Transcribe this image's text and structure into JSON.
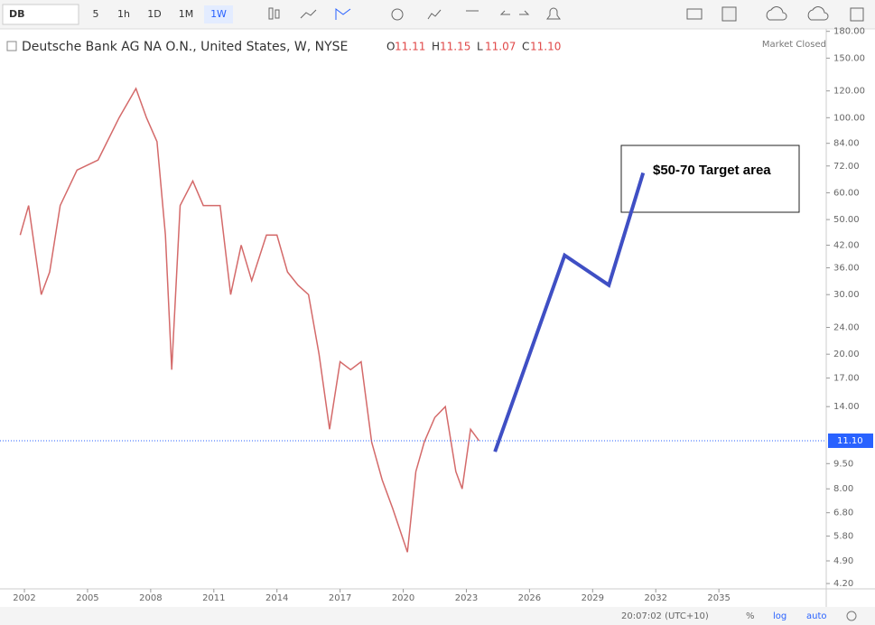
{
  "toolbar": {
    "symbol": "DB",
    "intervals": [
      "5",
      "1h",
      "1D",
      "1M",
      "1W"
    ]
  },
  "header": {
    "title": "Deutsche Bank AG NA O.N., United States, W, NYSE",
    "status": "Market Closed",
    "ohlc": [
      {
        "key": "O",
        "value": "11.11"
      },
      {
        "key": "H",
        "value": "11.15"
      },
      {
        "key": "L",
        "value": "11.07"
      },
      {
        "key": "C",
        "value": "11.10"
      }
    ]
  },
  "chart_data": {
    "type": "line",
    "log_scale": true,
    "annotation": "$50-70 Target area",
    "xlim": [
      2000.84,
      2040.1
    ],
    "xticks": [
      2002,
      2005,
      2008,
      2011,
      2014,
      2017,
      2020,
      2023,
      2026,
      2029,
      2032,
      2035
    ],
    "ylim": [
      4.05,
      183
    ],
    "yticks": [
      {
        "value": 4.2,
        "label": "4.20"
      },
      {
        "value": 4.9,
        "label": "4.90"
      },
      {
        "value": 5.8,
        "label": "5.80"
      },
      {
        "value": 6.8,
        "label": "6.80"
      },
      {
        "value": 8,
        "label": "8.00"
      },
      {
        "value": 9.5,
        "label": "9.50"
      },
      {
        "value": 14,
        "label": "14.00"
      },
      {
        "value": 17,
        "label": "17.00"
      },
      {
        "value": 20,
        "label": "20.00"
      },
      {
        "value": 24,
        "label": "24.00"
      },
      {
        "value": 30,
        "label": "30.00"
      },
      {
        "value": 36,
        "label": "36.00"
      },
      {
        "value": 42,
        "label": "42.00"
      },
      {
        "value": 50,
        "label": "50.00"
      },
      {
        "value": 60,
        "label": "60.00"
      },
      {
        "value": 72,
        "label": "72.00"
      },
      {
        "value": 84,
        "label": "84.00"
      },
      {
        "value": 100,
        "label": "100.00"
      },
      {
        "value": 120,
        "label": "120.00"
      },
      {
        "value": 150,
        "label": "150.00"
      },
      {
        "value": 180,
        "label": "180.00"
      }
    ],
    "last_price": {
      "value": 11.1,
      "label": "11.10",
      "color": "#2962ff"
    },
    "price": {
      "color": "#d46a6a",
      "x": [
        2001.8,
        2002.2,
        2002.8,
        2003.2,
        2003.7,
        2004.5,
        2005.5,
        2006.5,
        2007.3,
        2007.8,
        2008.3,
        2008.7,
        2009.0,
        2009.4,
        2010.0,
        2010.5,
        2011.3,
        2011.8,
        2012.3,
        2012.8,
        2013.5,
        2014.0,
        2014.5,
        2015.0,
        2015.5,
        2016.0,
        2016.5,
        2017.0,
        2017.5,
        2018.0,
        2018.5,
        2019.0,
        2019.5,
        2020.2,
        2020.6,
        2021.0,
        2021.5,
        2022.0,
        2022.5,
        2022.8,
        2023.2,
        2023.6
      ],
      "values": [
        45,
        55,
        30,
        35,
        55,
        70,
        75,
        100,
        122,
        100,
        85,
        45,
        18,
        55,
        65,
        55,
        55,
        30,
        42,
        33,
        45,
        45,
        35,
        32,
        30,
        20,
        12,
        19,
        18,
        19,
        11,
        8.5,
        7,
        5.2,
        9,
        11,
        13,
        14,
        9,
        8,
        12,
        11.1
      ]
    },
    "drawing": {
      "color": "#3f4fc4",
      "x": [
        2024.36,
        2027.67,
        2029.77,
        2031.4
      ],
      "values": [
        10.3,
        39.2,
        32.0,
        68.7
      ]
    }
  },
  "status_bar": {
    "time": "20:07:02 (UTC+10)",
    "percent": "%",
    "log": "log",
    "auto": "auto"
  }
}
